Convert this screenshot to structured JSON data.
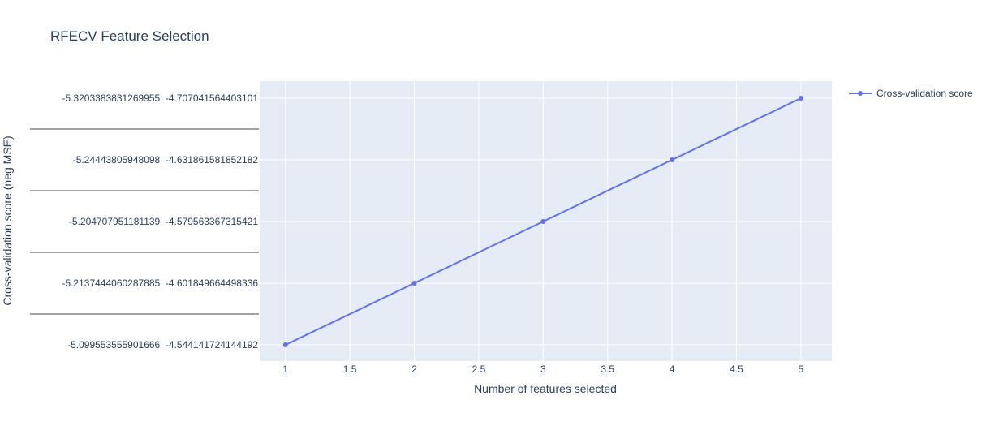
{
  "chart_data": {
    "type": "line",
    "title": "RFECV Feature Selection",
    "xlabel": "Number of features selected",
    "ylabel": "Cross-validation score (neg MSE)",
    "x": [
      1,
      2,
      3,
      4,
      5
    ],
    "xlim": [
      0.8,
      5.24
    ],
    "x_ticks": [
      "1",
      "1.5",
      "2",
      "2.5",
      "3",
      "3.5",
      "4",
      "4.5",
      "5"
    ],
    "y_tick_labels": [
      "-5.3203383831269955  -4.707041564403101",
      "-5.24443805948098  -4.631861581852182",
      "-5.204707951181139  -4.579563367315421",
      "-5.2137444060287885  -4.601849664498336",
      "-5.099553555901666  -4.544141724144192"
    ],
    "series": [
      {
        "name": "Cross-validation score",
        "color": "#636efa",
        "category_index": [
          4,
          3,
          2,
          1,
          0
        ]
      }
    ],
    "legend_position": "top-right",
    "grid": true,
    "plot_background": "#e5ecf6"
  }
}
